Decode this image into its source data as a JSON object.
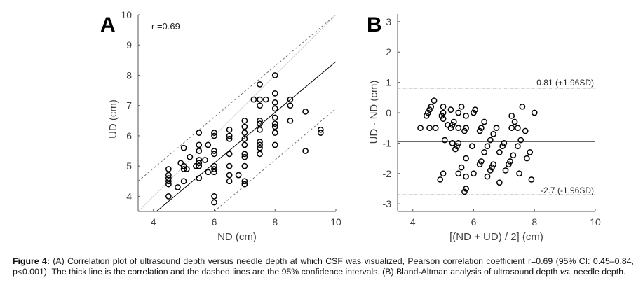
{
  "chart_data": [
    {
      "type": "scatter",
      "panel": "A",
      "title": "",
      "annotation": "r =0.69",
      "xlabel": "ND (cm)",
      "ylabel": "UD (cm)",
      "xlim": [
        3.5,
        10
      ],
      "ylim": [
        3.5,
        10
      ],
      "xticks": [
        4,
        6,
        8,
        10
      ],
      "yticks": [
        4,
        5,
        6,
        7,
        8,
        9,
        10
      ],
      "grid": false,
      "marker": "open-circle",
      "points": [
        [
          4.5,
          4.9
        ],
        [
          4.5,
          4.7
        ],
        [
          4.5,
          4.6
        ],
        [
          4.5,
          4.5
        ],
        [
          4.5,
          4.4
        ],
        [
          4.5,
          4.0
        ],
        [
          4.8,
          4.3
        ],
        [
          4.9,
          5.1
        ],
        [
          5.0,
          5.6
        ],
        [
          5.0,
          5.0
        ],
        [
          5.0,
          4.9
        ],
        [
          5.0,
          4.5
        ],
        [
          5.1,
          4.9
        ],
        [
          5.2,
          5.3
        ],
        [
          5.4,
          5.0
        ],
        [
          5.5,
          6.1
        ],
        [
          5.5,
          5.7
        ],
        [
          5.5,
          5.5
        ],
        [
          5.5,
          5.2
        ],
        [
          5.5,
          5.1
        ],
        [
          5.5,
          5.0
        ],
        [
          5.5,
          4.6
        ],
        [
          5.7,
          5.2
        ],
        [
          5.8,
          5.7
        ],
        [
          5.8,
          4.8
        ],
        [
          6.0,
          6.1
        ],
        [
          6.0,
          6.0
        ],
        [
          6.0,
          5.5
        ],
        [
          6.0,
          5.4
        ],
        [
          6.0,
          5.0
        ],
        [
          6.0,
          4.9
        ],
        [
          6.0,
          4.8
        ],
        [
          6.0,
          4.0
        ],
        [
          6.0,
          3.8
        ],
        [
          6.5,
          6.2
        ],
        [
          6.5,
          6.0
        ],
        [
          6.5,
          5.9
        ],
        [
          6.5,
          5.4
        ],
        [
          6.5,
          5.0
        ],
        [
          6.5,
          4.7
        ],
        [
          6.5,
          4.5
        ],
        [
          6.8,
          4.7
        ],
        [
          7.0,
          6.5
        ],
        [
          7.0,
          6.3
        ],
        [
          7.0,
          6.1
        ],
        [
          7.0,
          5.9
        ],
        [
          7.0,
          5.7
        ],
        [
          7.0,
          5.4
        ],
        [
          7.0,
          5.3
        ],
        [
          7.0,
          5.0
        ],
        [
          7.0,
          4.5
        ],
        [
          7.0,
          4.4
        ],
        [
          7.3,
          7.2
        ],
        [
          7.5,
          7.7
        ],
        [
          7.5,
          7.2
        ],
        [
          7.5,
          7.0
        ],
        [
          7.5,
          6.5
        ],
        [
          7.5,
          6.4
        ],
        [
          7.5,
          6.2
        ],
        [
          7.5,
          5.8
        ],
        [
          7.5,
          5.7
        ],
        [
          7.5,
          5.6
        ],
        [
          7.5,
          5.4
        ],
        [
          7.7,
          7.2
        ],
        [
          8.0,
          8.0
        ],
        [
          8.0,
          7.4
        ],
        [
          8.0,
          7.1
        ],
        [
          8.0,
          6.9
        ],
        [
          8.0,
          6.6
        ],
        [
          8.0,
          6.4
        ],
        [
          8.0,
          6.3
        ],
        [
          8.0,
          6.1
        ],
        [
          8.0,
          5.7
        ],
        [
          8.5,
          7.2
        ],
        [
          8.5,
          7.0
        ],
        [
          8.5,
          6.5
        ],
        [
          9.0,
          6.8
        ],
        [
          9.0,
          5.5
        ],
        [
          9.5,
          6.2
        ],
        [
          9.5,
          6.1
        ]
      ],
      "lines": [
        {
          "name": "correlation",
          "style": "solid",
          "color": "#000000",
          "from": [
            4.1,
            3.5
          ],
          "to": [
            10,
            8.45
          ]
        },
        {
          "name": "upper-95CI",
          "style": "dashed",
          "color": "#666666",
          "from": [
            3.5,
            4.5
          ],
          "to": [
            10,
            10
          ]
        },
        {
          "name": "lower-95CI",
          "style": "dashed",
          "color": "#666666",
          "from": [
            6.0,
            3.5
          ],
          "to": [
            10,
            6.9
          ]
        },
        {
          "name": "identity",
          "style": "solid-light",
          "color": "#c8c8c8",
          "from": [
            3.5,
            3.5
          ],
          "to": [
            10,
            10
          ]
        }
      ]
    },
    {
      "type": "scatter",
      "panel": "B",
      "title": "",
      "xlabel": "[(ND + UD) / 2] (cm)",
      "ylabel": "UD - ND (cm)",
      "xlim": [
        3.5,
        10
      ],
      "ylim": [
        -3.25,
        3.25
      ],
      "xticks": [
        4,
        6,
        8,
        10
      ],
      "yticks": [
        -3,
        -2,
        -1,
        0,
        1,
        2,
        3
      ],
      "grid": false,
      "marker": "open-circle",
      "points": [
        [
          4.25,
          -0.5
        ],
        [
          4.45,
          -0.1
        ],
        [
          4.5,
          0.0
        ],
        [
          4.55,
          0.1
        ],
        [
          4.6,
          0.2
        ],
        [
          4.7,
          0.4
        ],
        [
          4.55,
          -0.5
        ],
        [
          4.75,
          -0.5
        ],
        [
          4.9,
          -2.2
        ],
        [
          4.95,
          -0.1
        ],
        [
          5.0,
          0.2
        ],
        [
          5.0,
          0.0
        ],
        [
          5.0,
          -0.2
        ],
        [
          5.0,
          -2.0
        ],
        [
          5.05,
          -0.9
        ],
        [
          5.15,
          -0.4
        ],
        [
          5.25,
          0.1
        ],
        [
          5.25,
          -0.5
        ],
        [
          5.3,
          -0.4
        ],
        [
          5.35,
          -0.3
        ],
        [
          5.3,
          -1.0
        ],
        [
          5.4,
          -1.2
        ],
        [
          5.45,
          -1.1
        ],
        [
          5.5,
          0.0
        ],
        [
          5.5,
          -0.5
        ],
        [
          5.5,
          -1.0
        ],
        [
          5.5,
          -2.0
        ],
        [
          5.6,
          0.2
        ],
        [
          5.6,
          -1.8
        ],
        [
          5.7,
          -0.6
        ],
        [
          5.75,
          -0.1
        ],
        [
          5.75,
          -0.5
        ],
        [
          5.75,
          -1.5
        ],
        [
          5.75,
          -2.1
        ],
        [
          5.7,
          -2.6
        ],
        [
          5.75,
          -2.5
        ],
        [
          5.95,
          -1.1
        ],
        [
          6.0,
          0.0
        ],
        [
          6.05,
          0.1
        ],
        [
          6.0,
          -2.0
        ],
        [
          6.2,
          -0.6
        ],
        [
          6.25,
          -0.5
        ],
        [
          6.2,
          -1.7
        ],
        [
          6.25,
          -1.6
        ],
        [
          6.35,
          -0.3
        ],
        [
          6.35,
          -1.3
        ],
        [
          6.45,
          -1.1
        ],
        [
          6.45,
          -2.1
        ],
        [
          6.55,
          -0.9
        ],
        [
          6.55,
          -1.9
        ],
        [
          6.6,
          -1.8
        ],
        [
          6.65,
          -0.7
        ],
        [
          6.65,
          -1.7
        ],
        [
          6.75,
          -0.5
        ],
        [
          6.85,
          -1.3
        ],
        [
          6.85,
          -2.3
        ],
        [
          6.95,
          -1.1
        ],
        [
          7.0,
          -1.0
        ],
        [
          7.05,
          -1.9
        ],
        [
          7.15,
          -1.7
        ],
        [
          7.2,
          -1.6
        ],
        [
          7.25,
          -0.1
        ],
        [
          7.25,
          -0.5
        ],
        [
          7.3,
          -1.4
        ],
        [
          7.35,
          -0.3
        ],
        [
          7.45,
          -0.5
        ],
        [
          7.45,
          -1.1
        ],
        [
          7.5,
          -2.0
        ],
        [
          7.55,
          -0.9
        ],
        [
          7.6,
          0.2
        ],
        [
          7.7,
          -0.6
        ],
        [
          7.75,
          -1.5
        ],
        [
          7.85,
          -1.3
        ],
        [
          7.9,
          -2.2
        ],
        [
          8.0,
          0.0
        ]
      ],
      "lines": [
        {
          "name": "mean-bias",
          "style": "solid",
          "color": "#555555",
          "y": -0.95
        },
        {
          "name": "upper-LoA",
          "style": "dash-dot",
          "color": "#555555",
          "y": 0.81,
          "label": "0.81 (+1.96SD)"
        },
        {
          "name": "lower-LoA",
          "style": "dash-dot",
          "color": "#555555",
          "y": -2.7,
          "label": "-2.7 (-1.96SD)"
        }
      ]
    }
  ],
  "panels": {
    "a_letter": "A",
    "b_letter": "B"
  },
  "caption": {
    "label": "Figure 4:",
    "text_1": " (A) Correlation plot of ultrasound depth versus needle depth at which CSF was visualized, Pearson correlation coefficient r=0.69 (95% CI: 0.45–0.84, p<0.001). The thick line is the correlation and the dashed lines are the 95% confidence intervals. (B) Bland-Altman analysis of ultrasound depth ",
    "italic": "vs.",
    "text_2": " needle depth."
  }
}
